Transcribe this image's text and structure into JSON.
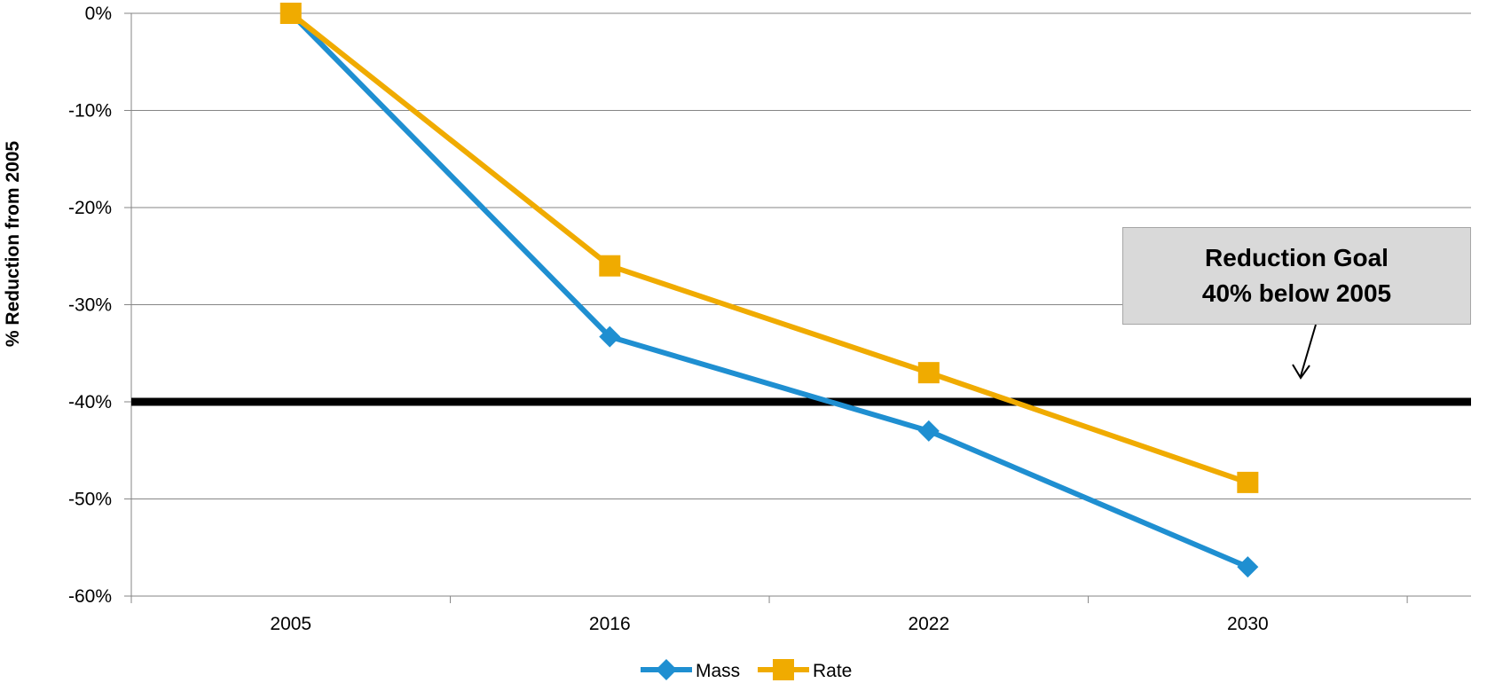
{
  "chart_data": {
    "type": "line",
    "categories": [
      "2005",
      "2016",
      "2022",
      "2030"
    ],
    "series": [
      {
        "name": "Mass",
        "values": [
          0,
          -33.3,
          -43,
          -57
        ],
        "color": "#1f8fd1",
        "marker": "diamond"
      },
      {
        "name": "Rate",
        "values": [
          0,
          -26,
          -37,
          -48.3
        ],
        "color": "#f0ab00",
        "marker": "square"
      }
    ],
    "reference_line": {
      "value": -40,
      "color": "#000000"
    },
    "ylabel": "% Reduction from 2005",
    "xlabel": "",
    "ylim": [
      -60,
      0
    ],
    "yticks": [
      "0%",
      "-10%",
      "-20%",
      "-30%",
      "-40%",
      "-50%",
      "-60%"
    ],
    "grid": true,
    "legend": "bottom",
    "annotation": {
      "line1": "Reduction Goal",
      "line2": "40% below 2005"
    }
  }
}
